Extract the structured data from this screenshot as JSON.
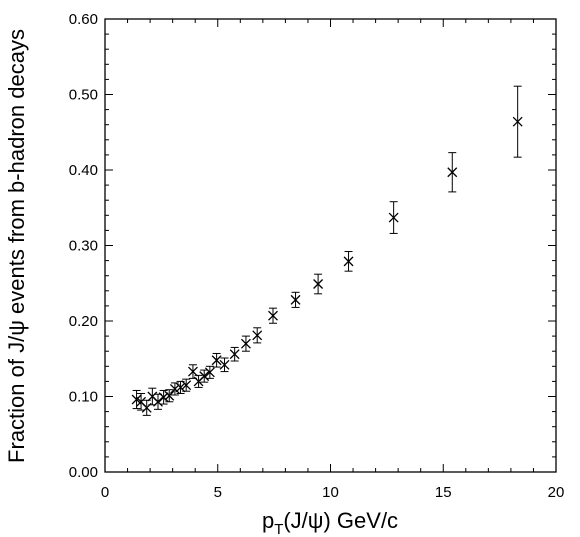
{
  "chart_data": {
    "type": "scatter",
    "title": "",
    "xlabel": {
      "main": "p",
      "subscript": "T",
      "rest": "(J/ψ) GeV/c"
    },
    "ylabel": "Fraction of J/ψ events from b-hadron decays",
    "xlim": [
      0,
      20
    ],
    "ylim": [
      0.0,
      0.6
    ],
    "x_ticks": [
      "0",
      "5",
      "10",
      "15",
      "20"
    ],
    "y_ticks": [
      "0.00",
      "0.10",
      "0.20",
      "0.30",
      "0.40",
      "0.50",
      "0.60"
    ],
    "grid": false,
    "marker": "x",
    "colors": {
      "marker": "#000000",
      "axis": "#000000",
      "background": "#ffffff"
    },
    "series": [
      {
        "x": [
          1.4,
          1.6,
          1.85,
          2.1,
          2.35,
          2.6,
          2.85,
          3.1,
          3.35,
          3.6,
          3.9,
          4.15,
          4.4,
          4.65,
          4.95,
          5.3,
          5.75,
          6.25,
          6.75,
          7.45,
          8.45,
          9.45,
          10.8,
          12.8,
          15.4,
          18.3
        ],
        "y": [
          0.096,
          0.093,
          0.085,
          0.1,
          0.093,
          0.099,
          0.101,
          0.11,
          0.112,
          0.115,
          0.133,
          0.12,
          0.127,
          0.132,
          0.148,
          0.142,
          0.156,
          0.17,
          0.181,
          0.207,
          0.228,
          0.249,
          0.279,
          0.337,
          0.397,
          0.464
        ],
        "err": [
          0.012,
          0.011,
          0.01,
          0.011,
          0.01,
          0.009,
          0.008,
          0.008,
          0.008,
          0.008,
          0.009,
          0.008,
          0.008,
          0.008,
          0.009,
          0.009,
          0.009,
          0.01,
          0.01,
          0.01,
          0.01,
          0.013,
          0.013,
          0.021,
          0.026,
          0.047
        ]
      }
    ]
  }
}
